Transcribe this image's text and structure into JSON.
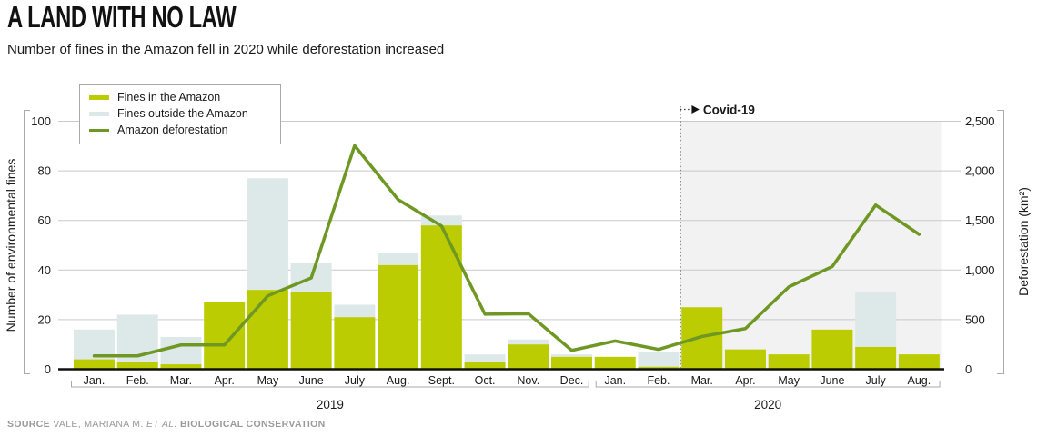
{
  "header": {
    "title": "A LAND WITH NO LAW",
    "subtitle": "Number of fines in the Amazon fell in 2020 while deforestation increased"
  },
  "chart_data": {
    "type": "bar+line",
    "categories": [
      "Jan.",
      "Feb.",
      "Mar.",
      "Apr.",
      "May",
      "June",
      "July",
      "Aug.",
      "Sept.",
      "Oct.",
      "Nov.",
      "Dec.",
      "Jan.",
      "Feb.",
      "Mar.",
      "Apr.",
      "May",
      "June",
      "July",
      "Aug."
    ],
    "year_groups": [
      {
        "label": "2019",
        "from": 0,
        "to": 11
      },
      {
        "label": "2020",
        "from": 12,
        "to": 19
      }
    ],
    "series": [
      {
        "name": "Fines in the Amazon",
        "type": "bar",
        "stack": "fines",
        "axis": "left",
        "color": "#bbcc03",
        "values": [
          4,
          3,
          2,
          27,
          32,
          31,
          21,
          42,
          58,
          3,
          10,
          5,
          5,
          1,
          25,
          8,
          6,
          16,
          9,
          6
        ]
      },
      {
        "name": "Fines outside the Amazon",
        "type": "bar",
        "stack": "fines",
        "axis": "left",
        "color": "#dde9e9",
        "values": [
          12,
          19,
          11,
          0,
          45,
          12,
          5,
          5,
          4,
          3,
          2,
          1,
          0,
          6,
          0,
          0,
          0,
          0,
          22,
          0
        ]
      },
      {
        "name": "Amazon deforestation",
        "type": "line",
        "axis": "right",
        "color": "#6f9723",
        "values": [
          135,
          135,
          245,
          245,
          740,
          920,
          2255,
          1710,
          1445,
          555,
          560,
          190,
          285,
          200,
          330,
          410,
          830,
          1035,
          1655,
          1360
        ]
      }
    ],
    "ylabel_left": "Number of environmental fines",
    "ylabel_right": "Deforestation (km²)",
    "yticks_left": [
      0,
      20,
      40,
      60,
      80,
      100
    ],
    "yticks_right": [
      "0",
      "500",
      "1,000",
      "1,500",
      "2,000",
      "2,500"
    ],
    "ylim_left": [
      0,
      100
    ],
    "ylim_right": [
      0,
      2500
    ],
    "grid": true,
    "legend_position": "top-left",
    "annotation": {
      "label": "Covid-19",
      "start_index": 14,
      "shade_color": "#f2f2f2"
    }
  },
  "source": {
    "label": "SOURCE",
    "authors": "VALE, MARIANA M.",
    "etal": "ET AL.",
    "journal": "BIOLOGICAL CONSERVATION"
  }
}
